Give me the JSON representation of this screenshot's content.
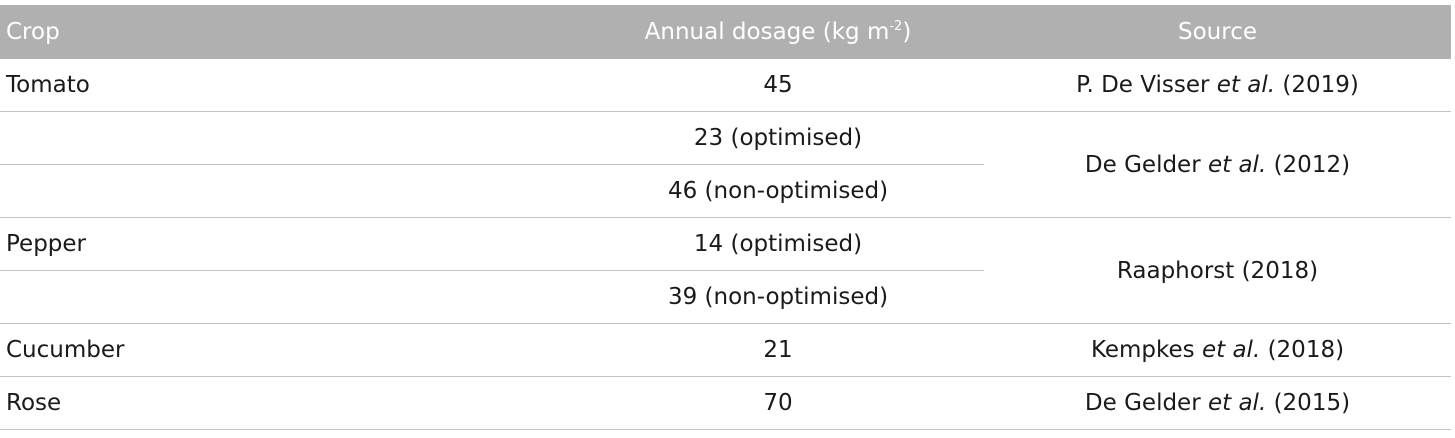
{
  "table": {
    "header": {
      "crop": "Crop",
      "dosage_main": "Annual dosage (kg m",
      "dosage_exp": "-2",
      "dosage_close": ")",
      "source": "Source"
    },
    "rows": [
      {
        "crop": "Tomato",
        "dosage": "45",
        "source_pre": "P. De Visser ",
        "source_etal": "et al.",
        "source_post": " (2019)"
      },
      {
        "crop": "",
        "dosage": "23 (optimised)",
        "source_pre": "De Gelder ",
        "source_etal": "et al.",
        "source_post": " (2012)"
      },
      {
        "crop": "",
        "dosage": "46 (non-optimised)"
      },
      {
        "crop": "Pepper",
        "dosage": "14 (optimised)",
        "source_pre": "Raaphorst (2018)",
        "source_etal": "",
        "source_post": ""
      },
      {
        "crop": "",
        "dosage": "39 (non-optimised)"
      },
      {
        "crop": "Cucumber",
        "dosage": "21",
        "source_pre": "Kempkes ",
        "source_etal": "et al.",
        "source_post": " (2018)"
      },
      {
        "crop": "Rose",
        "dosage": "70",
        "source_pre": "De Gelder ",
        "source_etal": "et al.",
        "source_post": " (2015)"
      }
    ]
  }
}
